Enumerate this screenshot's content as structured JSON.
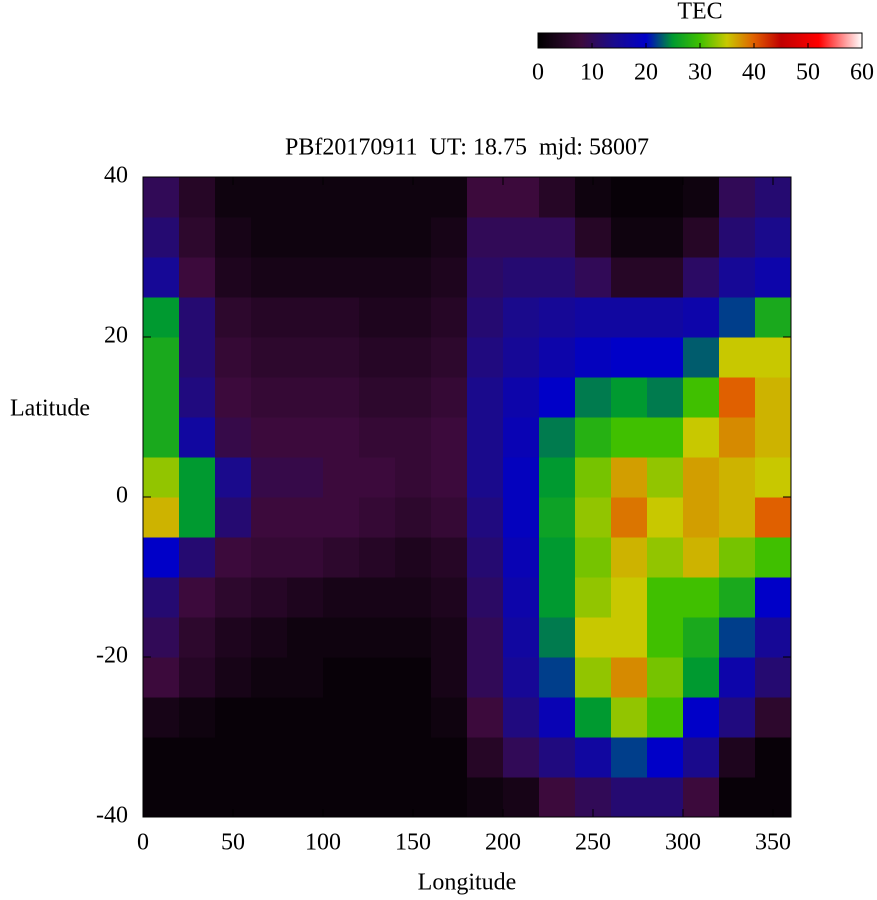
{
  "chart_data": {
    "type": "heatmap",
    "title": "PBf20170911  UT: 18.75  mjd: 58007",
    "x_label": "Longitude",
    "y_label": "Latitude",
    "colorbar_label": "TEC",
    "xbins": [
      0,
      20,
      40,
      60,
      80,
      100,
      120,
      140,
      160,
      180,
      200,
      220,
      240,
      260,
      280,
      300,
      320,
      340,
      360
    ],
    "ybins": [
      -40,
      -35,
      -30,
      -25,
      -20,
      -15,
      -10,
      -5,
      0,
      5,
      10,
      15,
      20,
      25,
      30,
      35,
      40
    ],
    "z": [
      [
        1,
        1,
        1,
        1,
        1,
        1,
        1,
        1,
        1,
        2,
        3,
        8,
        10,
        12,
        12,
        8,
        1,
        1
      ],
      [
        1,
        1,
        1,
        1,
        1,
        1,
        1,
        1,
        1,
        5,
        10,
        13,
        16,
        22,
        20,
        14,
        4,
        1
      ],
      [
        3,
        2,
        1,
        1,
        1,
        1,
        1,
        1,
        2,
        8,
        13,
        18,
        25,
        33,
        30,
        20,
        13,
        6
      ],
      [
        8,
        5,
        3,
        2,
        2,
        1,
        1,
        1,
        3,
        10,
        15,
        22,
        33,
        38,
        32,
        25,
        17,
        12
      ],
      [
        10,
        6,
        4,
        3,
        2,
        2,
        2,
        2,
        3,
        10,
        16,
        24,
        35,
        35,
        30,
        27,
        22,
        15
      ],
      [
        12,
        8,
        6,
        5,
        4,
        3,
        3,
        3,
        4,
        11,
        17,
        25,
        33,
        35,
        30,
        30,
        27,
        20
      ],
      [
        20,
        12,
        8,
        7,
        7,
        6,
        5,
        4,
        5,
        12,
        18,
        25,
        32,
        36,
        33,
        36,
        32,
        30
      ],
      [
        36,
        25,
        12,
        8,
        8,
        8,
        7,
        6,
        7,
        13,
        19,
        26,
        33,
        39,
        35,
        37,
        36,
        40
      ],
      [
        33,
        25,
        14,
        9,
        9,
        8,
        8,
        7,
        8,
        14,
        19,
        25,
        32,
        37,
        33,
        37,
        36,
        35
      ],
      [
        27,
        16,
        9,
        8,
        8,
        8,
        7,
        7,
        8,
        14,
        18,
        24,
        28,
        30,
        30,
        35,
        38,
        36
      ],
      [
        27,
        13,
        8,
        7,
        7,
        7,
        6,
        6,
        7,
        14,
        17,
        20,
        24,
        25,
        24,
        30,
        40,
        36
      ],
      [
        27,
        12,
        7,
        6,
        6,
        6,
        5,
        5,
        6,
        13,
        15,
        17,
        19,
        20,
        20,
        23,
        35,
        35
      ],
      [
        25,
        12,
        6,
        5,
        5,
        5,
        4,
        4,
        5,
        12,
        14,
        15,
        16,
        16,
        16,
        17,
        22,
        27
      ],
      [
        15,
        8,
        4,
        3,
        3,
        3,
        3,
        3,
        4,
        11,
        12,
        12,
        10,
        5,
        5,
        11,
        15,
        17
      ],
      [
        12,
        6,
        3,
        2,
        2,
        2,
        2,
        2,
        3,
        10,
        10,
        10,
        5,
        2,
        2,
        5,
        12,
        14
      ],
      [
        10,
        5,
        2,
        2,
        2,
        2,
        2,
        2,
        2,
        8,
        8,
        5,
        2,
        1,
        1,
        2,
        10,
        12
      ]
    ],
    "xlim": [
      0,
      360
    ],
    "xticks": [
      0,
      50,
      100,
      150,
      200,
      250,
      300,
      350
    ],
    "ylim": [
      -40,
      40
    ],
    "yticks": [
      -40,
      -20,
      0,
      20,
      40
    ],
    "clim": [
      0,
      60
    ],
    "cticks": [
      0,
      10,
      20,
      30,
      40,
      50,
      60
    ],
    "colorscale": [
      [
        0,
        "#000000"
      ],
      [
        8,
        "#3c0a3c"
      ],
      [
        14,
        "#1a0a8c"
      ],
      [
        20,
        "#0000c8"
      ],
      [
        25,
        "#009a30"
      ],
      [
        30,
        "#40c000"
      ],
      [
        35,
        "#c8c800"
      ],
      [
        40,
        "#e06000"
      ],
      [
        45,
        "#c00000"
      ],
      [
        52,
        "#ff0000"
      ],
      [
        60,
        "#ffffff"
      ]
    ]
  }
}
